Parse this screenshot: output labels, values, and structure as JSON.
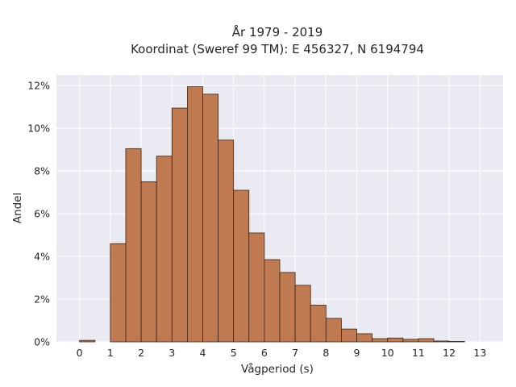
{
  "chart_data": {
    "type": "bar",
    "title_line1": "År 1979 - 2019",
    "title_line2": "Koordinat (Sweref 99 TM): E 456327, N 6194794",
    "xlabel": "Vågperiod (s)",
    "ylabel": "Andel",
    "x_ticks": [
      "0",
      "1",
      "2",
      "3",
      "4",
      "5",
      "6",
      "7",
      "8",
      "9",
      "10",
      "11",
      "12",
      "13"
    ],
    "y_ticks": [
      "0%",
      "2%",
      "4%",
      "6%",
      "8%",
      "10%",
      "12%"
    ],
    "xlim": [
      -0.75,
      13.75
    ],
    "ylim": [
      0,
      12.5
    ],
    "bin_width": 0.5,
    "bin_left_edges": [
      0,
      1,
      1.5,
      2,
      2.5,
      3,
      3.5,
      4,
      4.5,
      5,
      5.5,
      6,
      6.5,
      7,
      7.5,
      8,
      8.5,
      9,
      9.5,
      10,
      10.5,
      11,
      11.5,
      12
    ],
    "values": [
      0.07,
      4.6,
      9.05,
      7.5,
      8.7,
      10.95,
      11.95,
      11.6,
      9.45,
      7.1,
      5.1,
      3.85,
      3.25,
      2.65,
      1.72,
      1.1,
      0.6,
      0.38,
      0.15,
      0.18,
      0.12,
      0.15,
      0.04,
      0.02
    ],
    "grid": true,
    "colors": {
      "bar_fill": "#c07a52",
      "bar_edge": "#3b2314",
      "plot_bg": "#eaeaf2",
      "grid": "#ffffff"
    }
  }
}
